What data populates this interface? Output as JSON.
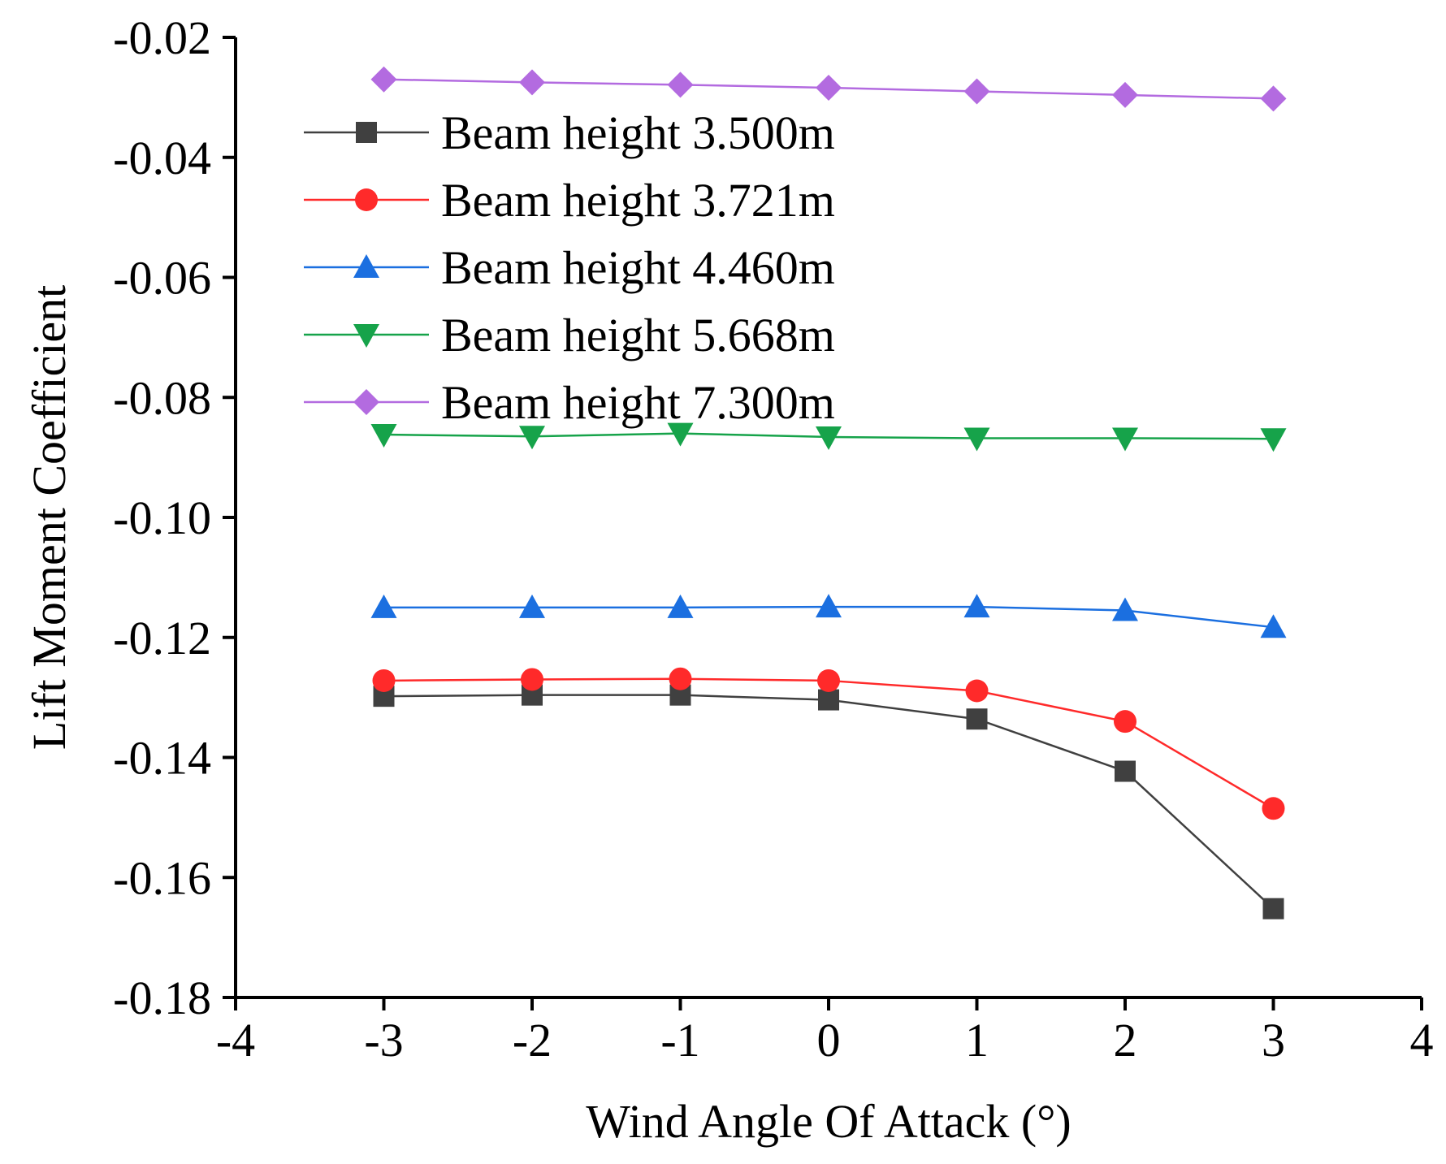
{
  "chart_data": {
    "type": "line",
    "title": "",
    "xlabel": "Wind Angle Of Attack (°)",
    "ylabel": "Lift Moment Coefficient",
    "xlim": [
      -4,
      4
    ],
    "ylim": [
      -0.18,
      -0.02
    ],
    "xticks": [
      "-4",
      "-3",
      "-2",
      "-1",
      "0",
      "1",
      "2",
      "3",
      "4"
    ],
    "yticks": [
      "-0.02",
      "-0.04",
      "-0.06",
      "-0.08",
      "-0.10",
      "-0.12",
      "-0.14",
      "-0.16",
      "-0.18"
    ],
    "legend_position": "top-left",
    "x": [
      -3,
      -2,
      -1,
      0,
      1,
      2,
      3
    ],
    "series": [
      {
        "name": "Beam height 3.500m",
        "color": "#404040",
        "marker": "square",
        "values": [
          -0.1298,
          -0.1296,
          -0.1296,
          -0.1304,
          -0.1336,
          -0.1423,
          -0.1652
        ]
      },
      {
        "name": "Beam height 3.721m",
        "color": "#ff2a2a",
        "marker": "circle",
        "values": [
          -0.1272,
          -0.127,
          -0.1269,
          -0.1272,
          -0.1289,
          -0.134,
          -0.1485
        ]
      },
      {
        "name": "Beam height 4.460m",
        "color": "#1b6fe0",
        "marker": "triangle-up",
        "values": [
          -0.115,
          -0.115,
          -0.115,
          -0.1149,
          -0.1149,
          -0.1155,
          -0.1183
        ]
      },
      {
        "name": "Beam height 5.668m",
        "color": "#16a34a",
        "marker": "triangle-down",
        "values": [
          -0.0862,
          -0.0865,
          -0.086,
          -0.0866,
          -0.0868,
          -0.0868,
          -0.0869
        ]
      },
      {
        "name": "Beam height 7.300m",
        "color": "#b36be0",
        "marker": "diamond",
        "values": [
          -0.027,
          -0.0275,
          -0.0279,
          -0.0284,
          -0.029,
          -0.0296,
          -0.0302
        ]
      }
    ]
  }
}
